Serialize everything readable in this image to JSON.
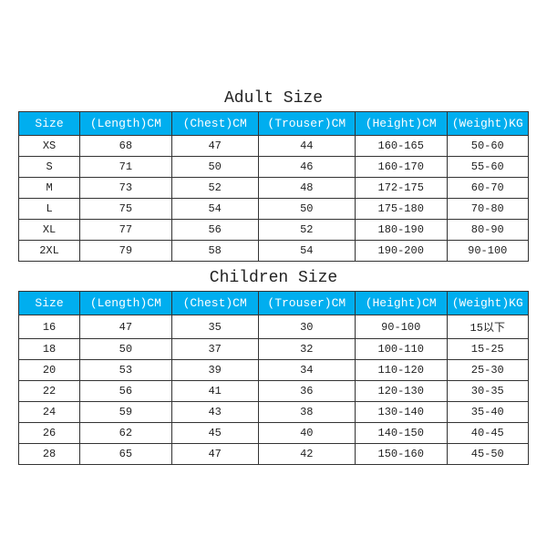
{
  "adult": {
    "title": "Adult Size",
    "columns": [
      "Size",
      "(Length)CM",
      "(Chest)CM",
      "(Trouser)CM",
      "(Height)CM",
      "(Weight)KG"
    ],
    "rows": [
      [
        "XS",
        "68",
        "47",
        "44",
        "160-165",
        "50-60"
      ],
      [
        "S",
        "71",
        "50",
        "46",
        "160-170",
        "55-60"
      ],
      [
        "M",
        "73",
        "52",
        "48",
        "172-175",
        "60-70"
      ],
      [
        "L",
        "75",
        "54",
        "50",
        "175-180",
        "70-80"
      ],
      [
        "XL",
        "77",
        "56",
        "52",
        "180-190",
        "80-90"
      ],
      [
        "2XL",
        "79",
        "58",
        "54",
        "190-200",
        "90-100"
      ]
    ],
    "header_bg": "#00aeef",
    "header_fg": "#ffffff",
    "border_color": "#333333",
    "title_fontsize": 18,
    "header_fontsize": 13,
    "cell_fontsize": 12
  },
  "children": {
    "title": "Children Size",
    "columns": [
      "Size",
      "(Length)CM",
      "(Chest)CM",
      "(Trouser)CM",
      "(Height)CM",
      "(Weight)KG"
    ],
    "rows": [
      [
        "16",
        "47",
        "35",
        "30",
        "90-100",
        "15以下"
      ],
      [
        "18",
        "50",
        "37",
        "32",
        "100-110",
        "15-25"
      ],
      [
        "20",
        "53",
        "39",
        "34",
        "110-120",
        "25-30"
      ],
      [
        "22",
        "56",
        "41",
        "36",
        "120-130",
        "30-35"
      ],
      [
        "24",
        "59",
        "43",
        "38",
        "130-140",
        "35-40"
      ],
      [
        "26",
        "62",
        "45",
        "40",
        "140-150",
        "40-45"
      ],
      [
        "28",
        "65",
        "47",
        "42",
        "150-160",
        "45-50"
      ]
    ],
    "header_bg": "#00aeef",
    "header_fg": "#ffffff",
    "border_color": "#333333",
    "title_fontsize": 18,
    "header_fontsize": 13,
    "cell_fontsize": 12
  },
  "column_widths_pct": [
    12,
    18,
    17,
    19,
    18,
    16
  ],
  "background_color": "#ffffff"
}
